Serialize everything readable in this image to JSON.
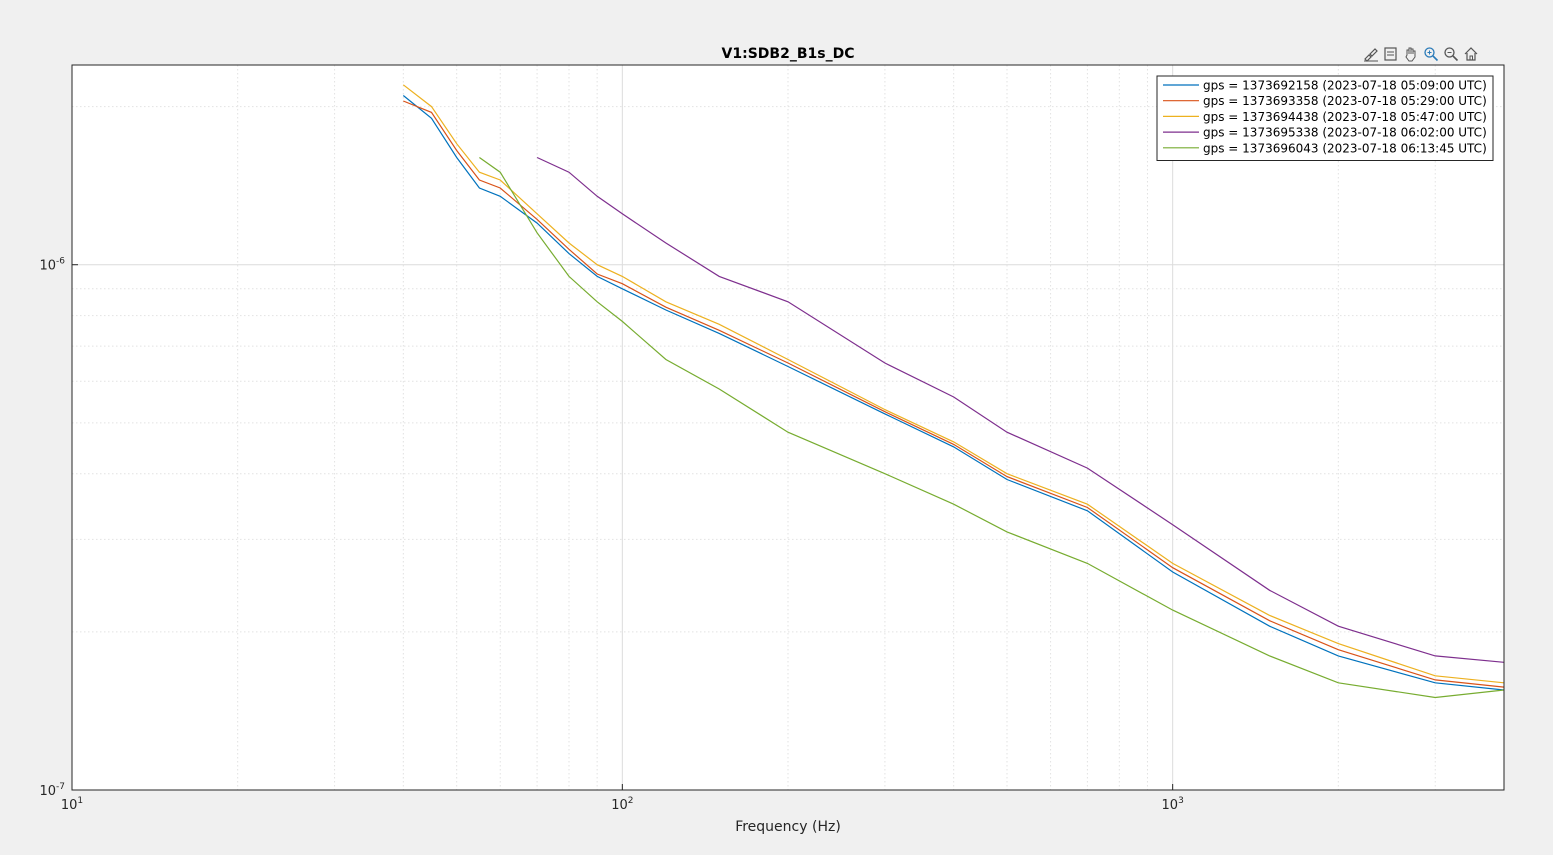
{
  "toolbar": {
    "tools": [
      {
        "icon": "brush-icon"
      },
      {
        "icon": "datatip-icon"
      },
      {
        "icon": "pan-icon"
      },
      {
        "icon": "zoom-in-icon"
      },
      {
        "icon": "zoom-out-icon"
      },
      {
        "icon": "home-icon"
      }
    ]
  },
  "chart_data": {
    "type": "line",
    "title": "V1:SDB2_B1s_DC",
    "xlabel": "Frequency (Hz)",
    "ylabel": "",
    "xscale": "log",
    "yscale": "log",
    "xlim": [
      10,
      4000
    ],
    "ylim": [
      1e-07,
      2.4e-06
    ],
    "x_ticks": [
      {
        "value": 10,
        "base": "10",
        "exp": "1"
      },
      {
        "value": 100,
        "base": "10",
        "exp": "2"
      },
      {
        "value": 1000,
        "base": "10",
        "exp": "3"
      }
    ],
    "y_ticks": [
      {
        "value": 1e-07,
        "base": "10",
        "exp": "-7"
      },
      {
        "value": 1e-06,
        "base": "10",
        "exp": "-6"
      }
    ],
    "grid": true,
    "legend_position": "top-right",
    "series": [
      {
        "name": "gps = 1373692158 (2023-07-18 05:09:00 UTC)",
        "color": "#0072bd",
        "x": [
          40,
          45,
          50,
          55,
          60,
          70,
          80,
          90,
          100,
          120,
          150,
          200,
          300,
          400,
          500,
          700,
          1000,
          1500,
          2000,
          3000,
          4000
        ],
        "y": [
          2.1e-06,
          1.9e-06,
          1.6e-06,
          1.4e-06,
          1.35e-06,
          1.2e-06,
          1.05e-06,
          9.5e-07,
          9e-07,
          8.2e-07,
          7.4e-07,
          6.4e-07,
          5.2e-07,
          4.5e-07,
          3.9e-07,
          3.4e-07,
          2.6e-07,
          2.05e-07,
          1.8e-07,
          1.6e-07,
          1.55e-07
        ]
      },
      {
        "name": "gps = 1373693358 (2023-07-18 05:29:00 UTC)",
        "color": "#d95319",
        "x": [
          40,
          45,
          50,
          55,
          60,
          70,
          80,
          90,
          100,
          120,
          150,
          200,
          300,
          400,
          500,
          700,
          1000,
          1500,
          2000,
          3000,
          4000
        ],
        "y": [
          2.05e-06,
          1.95e-06,
          1.65e-06,
          1.45e-06,
          1.4e-06,
          1.22e-06,
          1.07e-06,
          9.6e-07,
          9.2e-07,
          8.3e-07,
          7.5e-07,
          6.5e-07,
          5.25e-07,
          4.55e-07,
          3.95e-07,
          3.45e-07,
          2.65e-07,
          2.1e-07,
          1.85e-07,
          1.62e-07,
          1.57e-07
        ]
      },
      {
        "name": "gps = 1373694438 (2023-07-18 05:47:00 UTC)",
        "color": "#edb120",
        "x": [
          40,
          45,
          50,
          55,
          60,
          70,
          80,
          90,
          100,
          120,
          150,
          200,
          300,
          400,
          500,
          700,
          1000,
          1500,
          2000,
          3000,
          4000
        ],
        "y": [
          2.2e-06,
          2e-06,
          1.7e-06,
          1.5e-06,
          1.45e-06,
          1.25e-06,
          1.1e-06,
          1e-06,
          9.5e-07,
          8.5e-07,
          7.7e-07,
          6.6e-07,
          5.3e-07,
          4.6e-07,
          4e-07,
          3.5e-07,
          2.7e-07,
          2.15e-07,
          1.9e-07,
          1.65e-07,
          1.6e-07
        ]
      },
      {
        "name": "gps = 1373695338 (2023-07-18 06:02:00 UTC)",
        "color": "#7e2f8e",
        "x": [
          70,
          80,
          90,
          100,
          120,
          150,
          200,
          300,
          400,
          500,
          700,
          1000,
          1500,
          2000,
          3000,
          4000
        ],
        "y": [
          1.6e-06,
          1.5e-06,
          1.35e-06,
          1.25e-06,
          1.1e-06,
          9.5e-07,
          8.5e-07,
          6.5e-07,
          5.6e-07,
          4.8e-07,
          4.1e-07,
          3.2e-07,
          2.4e-07,
          2.05e-07,
          1.8e-07,
          1.75e-07
        ]
      },
      {
        "name": "gps = 1373696043 (2023-07-18 06:13:45 UTC)",
        "color": "#77ac30",
        "x": [
          55,
          60,
          70,
          80,
          90,
          100,
          120,
          150,
          200,
          300,
          400,
          500,
          700,
          1000,
          1500,
          2000,
          3000,
          4000
        ],
        "y": [
          1.6e-06,
          1.5e-06,
          1.15e-06,
          9.5e-07,
          8.5e-07,
          7.8e-07,
          6.6e-07,
          5.8e-07,
          4.8e-07,
          4e-07,
          3.5e-07,
          3.1e-07,
          2.7e-07,
          2.2e-07,
          1.8e-07,
          1.6e-07,
          1.5e-07,
          1.55e-07
        ]
      }
    ]
  }
}
